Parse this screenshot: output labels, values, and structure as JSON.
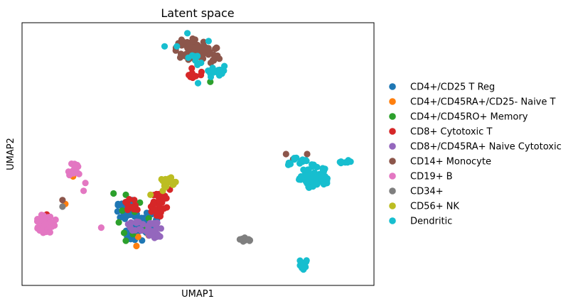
{
  "chart_data": {
    "type": "scatter",
    "title": "Latent space",
    "xlabel": "UMAP1",
    "ylabel": "UMAP2",
    "xlim": [
      0,
      100
    ],
    "ylim": [
      0,
      100
    ],
    "grid": false,
    "xticks": false,
    "yticks": false,
    "legend_position": "right, outside",
    "series": [
      {
        "name": "CD4+/CD25 T Reg",
        "color": "#1f77b4",
        "clusters": [
          {
            "cx": 30,
            "cy": 29,
            "rx": 3.2,
            "ry": 4.2,
            "n": 30
          },
          {
            "cx": 36,
            "cy": 25,
            "rx": 3.0,
            "ry": 3.0,
            "n": 20
          },
          {
            "cx": 33,
            "cy": 20,
            "rx": 4.0,
            "ry": 3.0,
            "n": 22
          }
        ]
      },
      {
        "name": "CD4+/CD45RA+/CD25- Naive T",
        "color": "#ff7f0e",
        "points": [
          [
            14.5,
            41.5
          ],
          [
            12.3,
            31
          ],
          [
            33,
            18.5
          ],
          [
            36,
            19
          ],
          [
            32.5,
            15
          ]
        ]
      },
      {
        "name": "CD4+/CD45RO+ Memory",
        "color": "#2ca02c",
        "points": [
          [
            26,
            35
          ],
          [
            29.5,
            34.5
          ],
          [
            28.5,
            28.5
          ],
          [
            32,
            28
          ],
          [
            27.5,
            24
          ],
          [
            29,
            20
          ],
          [
            31.5,
            19.5
          ],
          [
            36,
            25.5
          ],
          [
            35.5,
            22
          ],
          [
            33.5,
            31.5
          ],
          [
            29.5,
            17
          ],
          [
            53.5,
            77.5
          ]
        ]
      },
      {
        "name": "CD8+ Cytotoxic T",
        "color": "#d62728",
        "clusters": [
          {
            "cx": 39,
            "cy": 30.5,
            "rx": 2.6,
            "ry": 5.0,
            "n": 30
          },
          {
            "cx": 31,
            "cy": 30,
            "rx": 2.0,
            "ry": 3.0,
            "n": 10
          },
          {
            "cx": 49,
            "cy": 81,
            "rx": 2.5,
            "ry": 2.0,
            "n": 8
          }
        ],
        "points": [
          [
            7,
            27
          ],
          [
            42,
            36.5
          ],
          [
            43,
            38.5
          ]
        ]
      },
      {
        "name": "CD8+/CD45RA+ Naive Cytotoxic",
        "color": "#9467bd",
        "clusters": [
          {
            "cx": 38,
            "cy": 21,
            "rx": 2.8,
            "ry": 3.0,
            "n": 22
          },
          {
            "cx": 33,
            "cy": 23,
            "rx": 3.5,
            "ry": 2.5,
            "n": 14
          }
        ]
      },
      {
        "name": "CD14+ Monocyte",
        "color": "#8c564b",
        "clusters": [
          {
            "cx": 48,
            "cy": 90,
            "rx": 4.5,
            "ry": 4.5,
            "n": 50
          },
          {
            "cx": 53.5,
            "cy": 88,
            "rx": 3.0,
            "ry": 3.5,
            "n": 20
          }
        ],
        "points": [
          [
            75,
            50
          ],
          [
            77,
            48
          ],
          [
            81,
            50
          ],
          [
            11.5,
            32.5
          ]
        ]
      },
      {
        "name": "CD19+ B",
        "color": "#e377c2",
        "clusters": [
          {
            "cx": 7,
            "cy": 23.5,
            "rx": 3.2,
            "ry": 3.8,
            "n": 42
          },
          {
            "cx": 14.5,
            "cy": 44,
            "rx": 2.2,
            "ry": 2.5,
            "n": 14
          }
        ],
        "points": [
          [
            18,
            39
          ],
          [
            17.5,
            36
          ],
          [
            22.5,
            22
          ]
        ]
      },
      {
        "name": "CD34+",
        "color": "#7f7f7f",
        "clusters": [
          {
            "cx": 63.5,
            "cy": 17.5,
            "rx": 1.6,
            "ry": 0.9,
            "n": 12
          }
        ],
        "points": [
          [
            11.5,
            30
          ]
        ]
      },
      {
        "name": "CD56+ NK",
        "color": "#bcbd22",
        "clusters": [
          {
            "cx": 41.5,
            "cy": 39.5,
            "rx": 2.2,
            "ry": 2.2,
            "n": 18
          }
        ],
        "points": [
          [
            40,
            36
          ],
          [
            36.5,
            34.5
          ]
        ]
      },
      {
        "name": "Dendritic",
        "color": "#17becf",
        "clusters": [
          {
            "cx": 83,
            "cy": 41.5,
            "rx": 4.5,
            "ry": 5.0,
            "n": 50
          },
          {
            "cx": 78,
            "cy": 47,
            "rx": 3.0,
            "ry": 2.0,
            "n": 12
          },
          {
            "cx": 92,
            "cy": 47,
            "rx": 1.8,
            "ry": 0.9,
            "n": 7
          },
          {
            "cx": 80,
            "cy": 8.5,
            "rx": 1.3,
            "ry": 2.6,
            "n": 16
          },
          {
            "cx": 55,
            "cy": 81,
            "rx": 3.0,
            "ry": 2.0,
            "n": 14
          },
          {
            "cx": 49,
            "cy": 85,
            "rx": 3.0,
            "ry": 3.0,
            "n": 8
          }
        ],
        "points": [
          [
            44,
            91
          ],
          [
            47,
            96
          ],
          [
            40.5,
            91
          ],
          [
            53,
            93
          ],
          [
            57.5,
            83.5
          ],
          [
            50,
            77
          ]
        ]
      }
    ]
  }
}
